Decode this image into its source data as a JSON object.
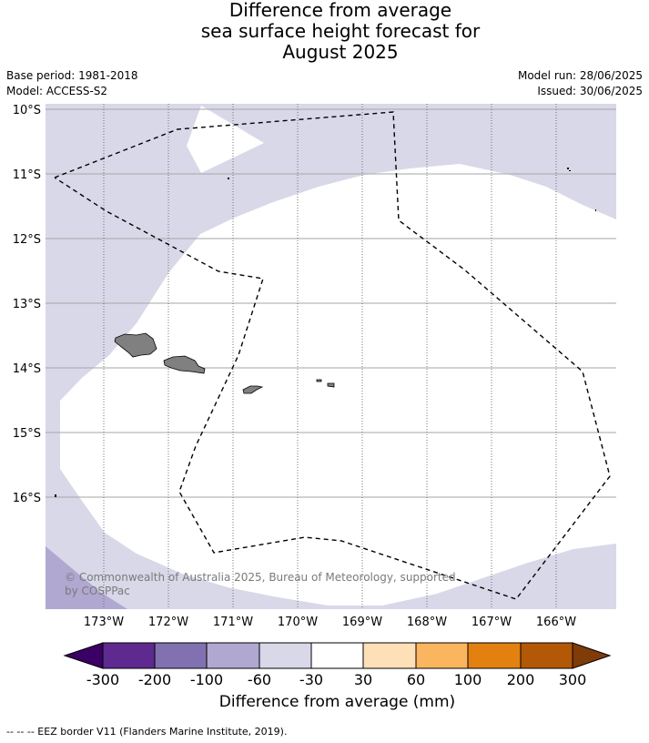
{
  "title": {
    "line1": "Difference from average",
    "line2": "sea surface height forecast for",
    "line3": "August 2025"
  },
  "meta_left": {
    "base_period": "Base period: 1981-2018",
    "model": "Model: ACCESS-S2"
  },
  "meta_right": {
    "model_run": "Model run: 28/06/2025",
    "issued": "Issued: 30/06/2025"
  },
  "map": {
    "latitude_labels": [
      "10°S",
      "11°S",
      "12°S",
      "13°S",
      "14°S",
      "15°S",
      "16°S"
    ],
    "longitude_labels": [
      "173°W",
      "172°W",
      "171°W",
      "170°W",
      "169°W",
      "168°W",
      "167°W",
      "166°W"
    ],
    "copyright_line1": "© Commonwealth of Australia 2025, Bureau of Meteorology, supported",
    "copyright_line2": "by COSPPac",
    "colors": {
      "neg_30_60": "#d8d8e9",
      "neg_60_100": "#b0a8d1",
      "neutral": "#ffffff",
      "land": "#808080",
      "eez_border": "#000000"
    }
  },
  "colorbar": {
    "tick_labels": [
      "-300",
      "-200",
      "-100",
      "-60",
      "-30",
      "30",
      "60",
      "100",
      "200",
      "300"
    ],
    "colors": [
      "#3b0066",
      "#5e2a8f",
      "#8271b0",
      "#b0a8d1",
      "#d8d8e9",
      "#ffffff",
      "#fde0b8",
      "#fbb55f",
      "#e2810f",
      "#b35806",
      "#7f3b08"
    ],
    "label": "Difference from average (mm)"
  },
  "footnote": "--  --  -- EEZ border V11 (Flanders Marine Institute, 2019)."
}
